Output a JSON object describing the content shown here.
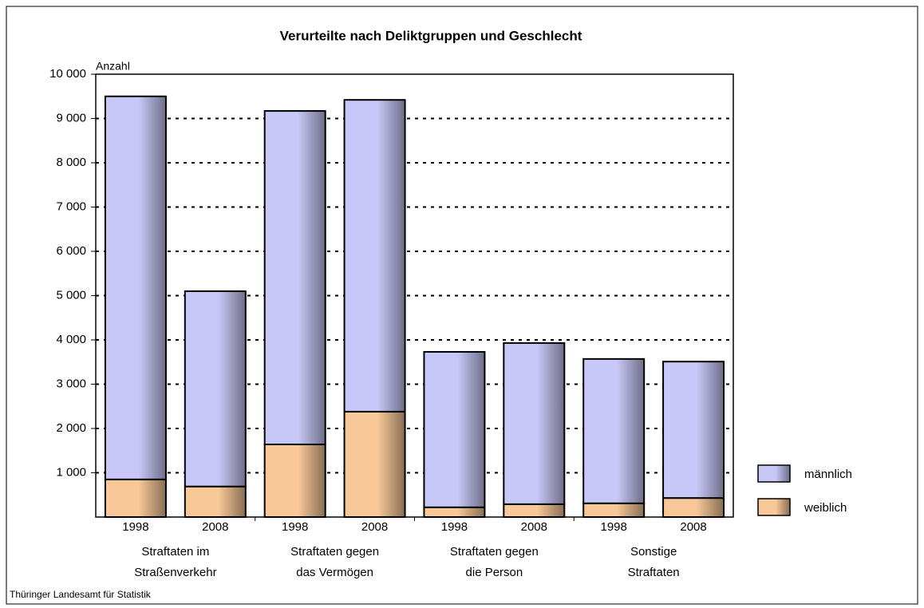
{
  "chart_data": {
    "type": "stacked_bar",
    "title": "Verurteilte nach Deliktgruppen und Geschlecht",
    "y_axis_label": "Anzahl",
    "source": "Thüringer Landesamt für Statistik",
    "categories": [
      "1998",
      "2008",
      "1998",
      "2008",
      "1998",
      "2008",
      "1998",
      "2008"
    ],
    "groups": [
      [
        "Straftaten im",
        "Straßenverkehr"
      ],
      [
        "Straftaten gegen",
        "das Vermögen"
      ],
      [
        "Straftaten gegen",
        "die Person"
      ],
      [
        "Sonstige",
        "Straftaten"
      ]
    ],
    "series": [
      {
        "name": "männlich",
        "color": "#c8c8f8",
        "values": [
          8650,
          4410,
          7530,
          7040,
          3510,
          3640,
          3260,
          3080
        ]
      },
      {
        "name": "weiblich",
        "color": "#f8c898",
        "values": [
          850,
          690,
          1640,
          2380,
          220,
          290,
          310,
          430
        ]
      }
    ],
    "stack_order": [
      "weiblich",
      "männlich"
    ],
    "ylim": [
      0,
      10000
    ],
    "yticks": [
      {
        "value": 1000,
        "label": "1 000"
      },
      {
        "value": 2000,
        "label": "2 000"
      },
      {
        "value": 3000,
        "label": "3 000"
      },
      {
        "value": 4000,
        "label": "4 000"
      },
      {
        "value": 5000,
        "label": "5 000"
      },
      {
        "value": 6000,
        "label": "6 000"
      },
      {
        "value": 7000,
        "label": "7 000"
      },
      {
        "value": 8000,
        "label": "8 000"
      },
      {
        "value": 9000,
        "label": "9 000"
      },
      {
        "value": 10000,
        "label": "10 000"
      }
    ],
    "grid": true,
    "legend": "right"
  }
}
